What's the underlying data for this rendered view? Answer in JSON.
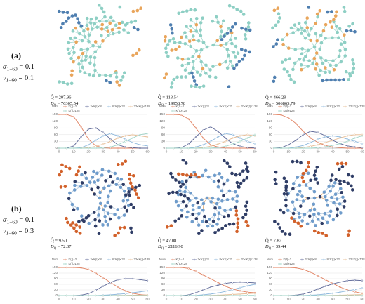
{
  "figure": {
    "rows": [
      {
        "label": "(a)",
        "params": [
          {
            "symbol": "α",
            "sub": "1−60",
            "rest": " = 0.1"
          },
          {
            "symbol": "v",
            "sub": "1−60",
            "rest": " = 0.1"
          }
        ],
        "stats": [
          {
            "q": "Q̂ = 207.96",
            "d": {
              "symbol": "D",
              "sub": "Q",
              "rest": " = 76305.54"
            }
          },
          {
            "q": "Q̂ = 113.54",
            "d": {
              "symbol": "D",
              "sub": "Q",
              "rest": " = 19958.78"
            }
          },
          {
            "q": "Q̂ = 466.29",
            "d": {
              "symbol": "D",
              "sub": "Q",
              "rest": " = 506865.79"
            }
          }
        ]
      },
      {
        "label": "(b)",
        "params": [
          {
            "symbol": "α",
            "sub": "1−60",
            "rest": " = 0.1"
          },
          {
            "symbol": "v",
            "sub": "1−60",
            "rest": " = 0.3"
          }
        ],
        "stats": [
          {
            "q": "Q̂ = 9.50",
            "d": {
              "symbol": "D",
              "sub": "Q",
              "rest": " = 72.37"
            }
          },
          {
            "q": "Q̂ = 47.08",
            "d": {
              "symbol": "D",
              "sub": "Q",
              "rest": " = 2116.90"
            }
          },
          {
            "q": "Q̂ = 7.82",
            "d": {
              "symbol": "D",
              "sub": "Q",
              "rest": " = 39.44"
            }
          }
        ]
      }
    ]
  },
  "chart_data": [
    {
      "type": "line",
      "y_label": "Num",
      "x": [
        0,
        5,
        10,
        15,
        20,
        25,
        30,
        35,
        40,
        45,
        50,
        55,
        60
      ],
      "xlim": [
        0,
        60
      ],
      "xticks": [
        0,
        10,
        20,
        30,
        40,
        50,
        60
      ],
      "ylim": [
        0,
        150
      ],
      "yticks": [
        0,
        30,
        60,
        90,
        120,
        150
      ],
      "grid": true,
      "series": [
        {
          "name": "K(t)=2",
          "color": "#e07f5e",
          "values": [
            150,
            150,
            140,
            95,
            40,
            10,
            2,
            0,
            0,
            0,
            0,
            0,
            0
          ]
        },
        {
          "name": "2≤K(t)<8",
          "color": "#5b6696",
          "values": [
            0,
            0,
            10,
            50,
            85,
            90,
            70,
            40,
            15,
            5,
            2,
            0,
            0
          ]
        },
        {
          "name": "8≤K(t)<32",
          "color": "#8cb7dc",
          "values": [
            0,
            0,
            0,
            2,
            15,
            35,
            55,
            65,
            55,
            40,
            25,
            15,
            10
          ]
        },
        {
          "name": "32≤K(t)<128",
          "color": "#e5b98f",
          "values": [
            0,
            0,
            0,
            0,
            2,
            8,
            18,
            30,
            45,
            55,
            60,
            55,
            50
          ]
        },
        {
          "name": "K(t)≥128",
          "color": "#9fd3c7",
          "values": [
            0,
            0,
            0,
            0,
            0,
            0,
            2,
            5,
            15,
            30,
            45,
            60,
            65
          ]
        }
      ]
    },
    {
      "type": "line",
      "y_label": "Num",
      "x": [
        0,
        5,
        10,
        15,
        20,
        25,
        30,
        35,
        40,
        45,
        50,
        55,
        60
      ],
      "xlim": [
        0,
        60
      ],
      "xticks": [
        0,
        10,
        20,
        30,
        40,
        50,
        60
      ],
      "ylim": [
        0,
        150
      ],
      "yticks": [
        0,
        30,
        60,
        90,
        120,
        150
      ],
      "grid": true,
      "series": [
        {
          "name": "K(t)=2",
          "color": "#e07f5e",
          "values": [
            150,
            150,
            148,
            130,
            90,
            45,
            15,
            5,
            1,
            0,
            0,
            0,
            0
          ]
        },
        {
          "name": "2≤K(t)<8",
          "color": "#5b6696",
          "values": [
            0,
            0,
            2,
            18,
            50,
            80,
            95,
            75,
            45,
            20,
            8,
            3,
            1
          ]
        },
        {
          "name": "8≤K(t)<32",
          "color": "#8cb7dc",
          "values": [
            0,
            0,
            0,
            0,
            5,
            15,
            30,
            50,
            65,
            60,
            45,
            30,
            20
          ]
        },
        {
          "name": "32≤K(t)<128",
          "color": "#e5b98f",
          "values": [
            0,
            0,
            0,
            0,
            0,
            3,
            8,
            18,
            30,
            45,
            55,
            60,
            55
          ]
        },
        {
          "name": "K(t)≥128",
          "color": "#9fd3c7",
          "values": [
            0,
            0,
            0,
            0,
            0,
            0,
            0,
            3,
            8,
            18,
            30,
            45,
            60
          ]
        }
      ]
    },
    {
      "type": "line",
      "y_label": "Num",
      "x": [
        0,
        5,
        10,
        15,
        20,
        25,
        30,
        35,
        40,
        45,
        50,
        55,
        60
      ],
      "xlim": [
        0,
        60
      ],
      "xticks": [
        0,
        10,
        20,
        30,
        40,
        50,
        60
      ],
      "ylim": [
        0,
        150
      ],
      "yticks": [
        0,
        30,
        60,
        90,
        120,
        150
      ],
      "grid": true,
      "series": [
        {
          "name": "K(t)=2",
          "color": "#e07f5e",
          "values": [
            150,
            148,
            135,
            110,
            75,
            45,
            25,
            12,
            5,
            2,
            0,
            0,
            0
          ]
        },
        {
          "name": "2≤K(t)<8",
          "color": "#5b6696",
          "values": [
            0,
            2,
            15,
            35,
            60,
            75,
            70,
            55,
            35,
            20,
            10,
            5,
            2
          ]
        },
        {
          "name": "8≤K(t)<32",
          "color": "#8cb7dc",
          "values": [
            0,
            0,
            0,
            5,
            12,
            25,
            40,
            50,
            55,
            50,
            40,
            30,
            20
          ]
        },
        {
          "name": "32≤K(t)<128",
          "color": "#e5b98f",
          "values": [
            0,
            0,
            0,
            0,
            3,
            8,
            15,
            25,
            35,
            45,
            55,
            60,
            60
          ]
        },
        {
          "name": "K(t)≥128",
          "color": "#9fd3c7",
          "values": [
            0,
            0,
            0,
            0,
            0,
            0,
            2,
            6,
            12,
            20,
            30,
            45,
            55
          ]
        }
      ]
    },
    {
      "type": "line",
      "y_label": "Num",
      "x": [
        0,
        5,
        10,
        15,
        20,
        25,
        30,
        35,
        40,
        45,
        50,
        55,
        60
      ],
      "xlim": [
        0,
        60
      ],
      "xticks": [
        0,
        10,
        20,
        30,
        40,
        50,
        60
      ],
      "ylim": [
        0,
        150
      ],
      "yticks": [
        0,
        30,
        60,
        90,
        120,
        150
      ],
      "grid": true,
      "series": [
        {
          "name": "K(t)=2",
          "color": "#e07f5e",
          "values": [
            150,
            150,
            150,
            148,
            140,
            120,
            95,
            70,
            45,
            25,
            12,
            5,
            2
          ]
        },
        {
          "name": "2≤K(t)<8",
          "color": "#5b6696",
          "values": [
            0,
            0,
            0,
            2,
            10,
            28,
            50,
            70,
            85,
            90,
            90,
            85,
            80
          ]
        },
        {
          "name": "8≤K(t)<32",
          "color": "#8cb7dc",
          "values": [
            0,
            0,
            0,
            0,
            0,
            0,
            2,
            4,
            7,
            10,
            15,
            20,
            25
          ]
        },
        {
          "name": "32≤K(t)<128",
          "color": "#e5b98f",
          "values": [
            0,
            0,
            0,
            0,
            0,
            0,
            0,
            0,
            1,
            1,
            2,
            2,
            3
          ]
        },
        {
          "name": "K(t)≥128",
          "color": "#9fd3c7",
          "values": [
            0,
            0,
            0,
            0,
            0,
            0,
            0,
            0,
            0,
            0,
            0,
            0,
            0
          ]
        }
      ]
    },
    {
      "type": "line",
      "y_label": "Num",
      "x": [
        0,
        5,
        10,
        15,
        20,
        25,
        30,
        35,
        40,
        45,
        50,
        55,
        60
      ],
      "xlim": [
        0,
        60
      ],
      "xticks": [
        0,
        10,
        20,
        30,
        40,
        50,
        60
      ],
      "ylim": [
        0,
        150
      ],
      "yticks": [
        0,
        30,
        60,
        90,
        120,
        150
      ],
      "grid": true,
      "series": [
        {
          "name": "K(t)=2",
          "color": "#e07f5e",
          "values": [
            150,
            150,
            150,
            145,
            130,
            110,
            90,
            70,
            50,
            35,
            25,
            18,
            15
          ]
        },
        {
          "name": "2≤K(t)<8",
          "color": "#5b6696",
          "values": [
            0,
            0,
            0,
            3,
            15,
            30,
            45,
            55,
            65,
            70,
            72,
            70,
            68
          ]
        },
        {
          "name": "8≤K(t)<32",
          "color": "#8cb7dc",
          "values": [
            0,
            0,
            0,
            0,
            1,
            4,
            8,
            14,
            22,
            32,
            42,
            52,
            60
          ]
        },
        {
          "name": "32≤K(t)<128",
          "color": "#e5b98f",
          "values": [
            0,
            0,
            0,
            0,
            0,
            0,
            1,
            2,
            4,
            6,
            8,
            10,
            12
          ]
        },
        {
          "name": "K(t)≥128",
          "color": "#9fd3c7",
          "values": [
            0,
            0,
            0,
            0,
            0,
            0,
            0,
            0,
            0,
            0,
            0,
            1,
            1
          ]
        }
      ]
    },
    {
      "type": "line",
      "y_label": "Num",
      "x": [
        0,
        5,
        10,
        15,
        20,
        25,
        30,
        35,
        40,
        45,
        50,
        55,
        60
      ],
      "xlim": [
        0,
        60
      ],
      "xticks": [
        0,
        10,
        20,
        30,
        40,
        50,
        60
      ],
      "ylim": [
        0,
        150
      ],
      "yticks": [
        0,
        30,
        60,
        90,
        120,
        150
      ],
      "grid": true,
      "series": [
        {
          "name": "K(t)=2",
          "color": "#e07f5e",
          "values": [
            150,
            150,
            150,
            148,
            140,
            125,
            105,
            85,
            65,
            45,
            30,
            20,
            12
          ]
        },
        {
          "name": "2≤K(t)<8",
          "color": "#5b6696",
          "values": [
            0,
            0,
            0,
            2,
            8,
            20,
            35,
            50,
            62,
            72,
            80,
            82,
            80
          ]
        },
        {
          "name": "8≤K(t)<32",
          "color": "#8cb7dc",
          "values": [
            0,
            0,
            0,
            0,
            0,
            2,
            4,
            8,
            12,
            18,
            25,
            32,
            40
          ]
        },
        {
          "name": "32≤K(t)<128",
          "color": "#e5b98f",
          "values": [
            0,
            0,
            0,
            0,
            0,
            0,
            0,
            0,
            1,
            2,
            3,
            4,
            5
          ]
        },
        {
          "name": "K(t)≥128",
          "color": "#9fd3c7",
          "values": [
            0,
            0,
            0,
            0,
            0,
            0,
            0,
            0,
            0,
            0,
            0,
            0,
            0
          ]
        }
      ]
    }
  ]
}
